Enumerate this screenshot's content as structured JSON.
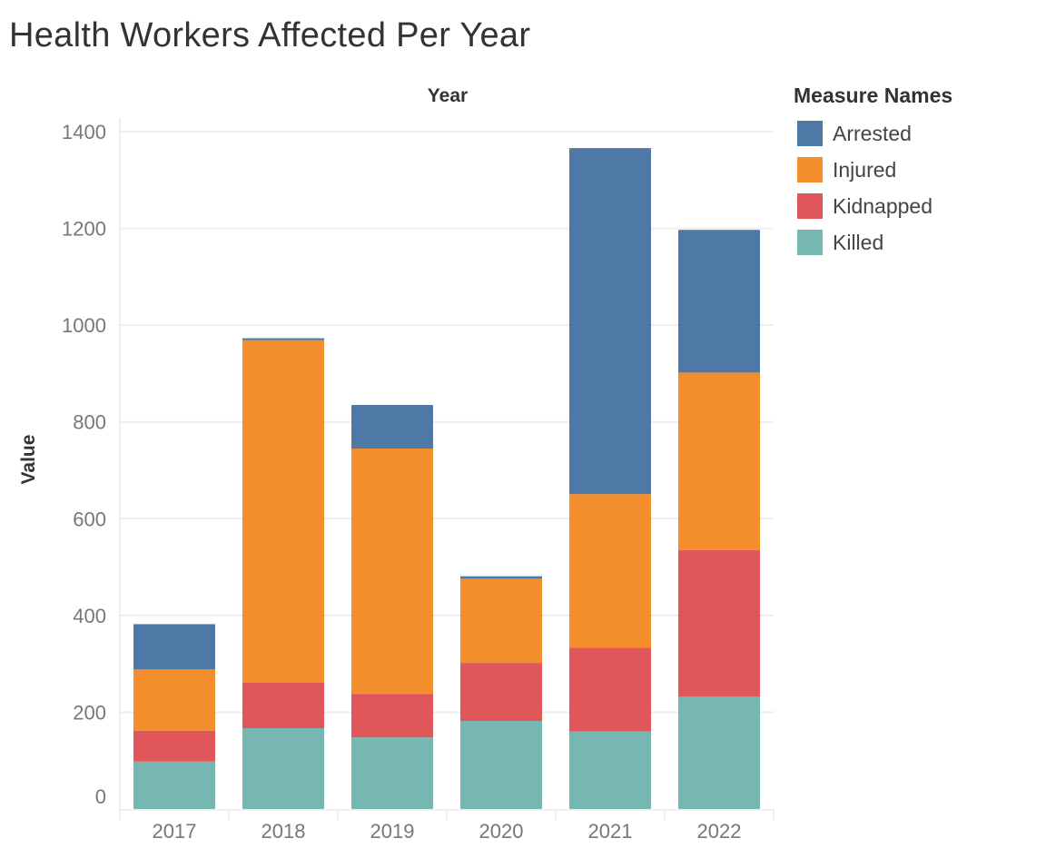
{
  "title": "Health Workers Affected Per Year",
  "colors": {
    "Arrested": "#4e79a7",
    "Injured": "#f28e2b",
    "Kidnapped": "#e15759",
    "Killed": "#76b7b2",
    "grid": "#eeeeee",
    "tick_text": "#777777"
  },
  "legend": {
    "title": "Measure Names",
    "items": [
      {
        "label": "Arrested",
        "color": "#4e79a7"
      },
      {
        "label": "Injured",
        "color": "#f28e2b"
      },
      {
        "label": "Kidnapped",
        "color": "#e15759"
      },
      {
        "label": "Killed",
        "color": "#76b7b2"
      }
    ]
  },
  "chart_data": {
    "type": "bar",
    "stacked": true,
    "title": "Health Workers Affected Per Year",
    "column_header": "Year",
    "xlabel": "",
    "ylabel": "Value",
    "categories": [
      "2017",
      "2018",
      "2019",
      "2020",
      "2021",
      "2022"
    ],
    "series": [
      {
        "name": "Killed",
        "values": [
          98,
          167,
          148,
          182,
          160,
          232
        ]
      },
      {
        "name": "Kidnapped",
        "values": [
          64,
          94,
          90,
          120,
          173,
          303
        ]
      },
      {
        "name": "Injured",
        "values": [
          127,
          708,
          507,
          174,
          318,
          367
        ]
      },
      {
        "name": "Arrested",
        "values": [
          93,
          4,
          90,
          5,
          715,
          295
        ]
      }
    ],
    "ylim": [
      0,
      1400
    ],
    "yticks": [
      0,
      200,
      400,
      600,
      800,
      1000,
      1200,
      1400
    ],
    "grid": true,
    "legend_position": "right"
  }
}
